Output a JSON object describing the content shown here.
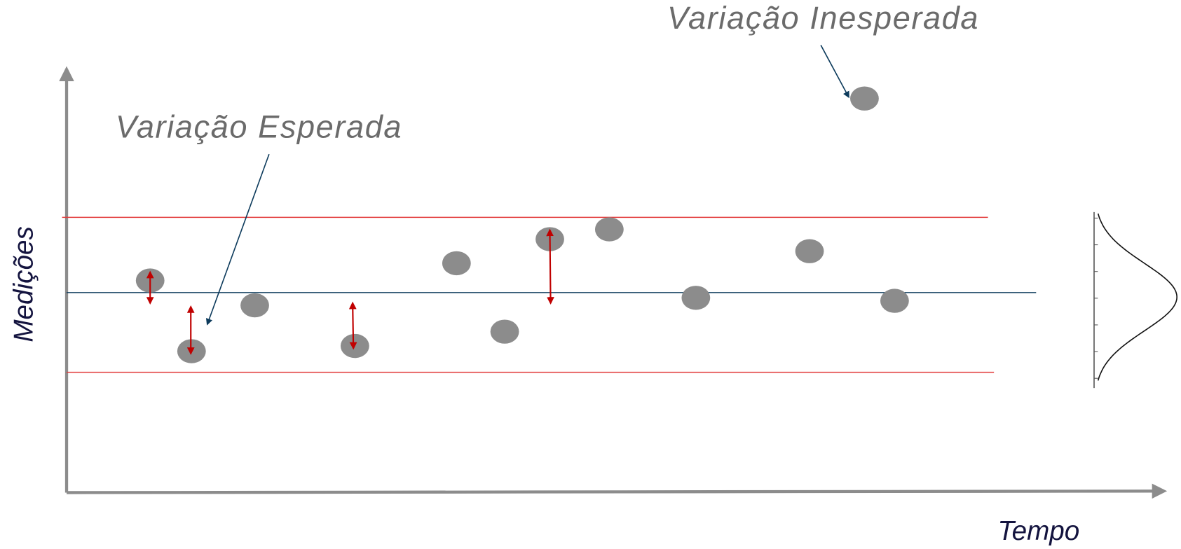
{
  "annotations": {
    "unexpected": "Variação Inesperada",
    "expected": "Variação Esperada"
  },
  "axes": {
    "y_label": "Medições",
    "x_label": "Tempo"
  }
}
